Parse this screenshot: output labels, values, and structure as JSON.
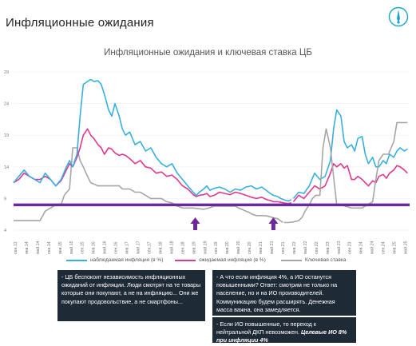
{
  "page": {
    "title": "Инфляционные ожидания",
    "logo_icon": "compass-logo-icon"
  },
  "notes": [
    {
      "text": "- ЦБ беспокоит независимость инфляционных ожиданий от инфляции. Люди смотрят на те товары которые они покупают, а не на инфляцию... Они же покупают продовольствие, а не смартфоны..."
    },
    {
      "text": "- А что если инфляция 4%, а ИО останутся повышенными? Ответ: смотрим не только на население, но и на ИО производителей. Коммуникацию будем расширять. Денежная масса важна, она замедляется."
    },
    {
      "text": "- Если ИО повышенные, то переход к нейтральной ДКП невозможен.",
      "highlight": "Целевые ИО 8% при инфляции 4%"
    }
  ],
  "colors": {
    "observed": "#38b0dd",
    "expected": "#e0388f",
    "key_rate": "#a6a6a6",
    "target_line": "#6a2a9c",
    "arrow": "#6a2a9c",
    "note_bg": "#1f2a37"
  },
  "chart_data": {
    "type": "line",
    "title": "Инфляционные ожидания и ключевая ставка ЦБ",
    "ylim": [
      4,
      29
    ],
    "y_ticks": [
      "4",
      "9",
      "14",
      "19",
      "24",
      "29"
    ],
    "x_tick_labels": [
      "сен.13",
      "янв.14",
      "май.14",
      "сен.14",
      "янв.15",
      "май.15",
      "сен.15",
      "янв.16",
      "май.16",
      "сен.16",
      "янв.17",
      "май.17",
      "сен.17",
      "янв.18",
      "май.18",
      "сен.18",
      "янв.19",
      "май.19",
      "сен.19",
      "янв.20",
      "май.20",
      "сен.20",
      "янв.21",
      "май.21",
      "сен.21",
      "янв.22",
      "май.22",
      "сен.22",
      "янв.23",
      "май.23",
      "сен.23",
      "янв.24",
      "май.24",
      "сен.24",
      "янв.25",
      "май.25"
    ],
    "x_range": [
      0,
      35
    ],
    "horizontal_line": {
      "y": 8
    },
    "arrows": [
      {
        "x": 17.2
      },
      {
        "x": 24.6
      }
    ],
    "series": [
      {
        "name": "наблюдаемая инфляция (в %)",
        "points": [
          [
            0,
            11.5
          ],
          [
            0.5,
            12.5
          ],
          [
            1,
            13.5
          ],
          [
            1.5,
            12.5
          ],
          [
            2,
            12
          ],
          [
            2.5,
            11.5
          ],
          [
            3,
            13
          ],
          [
            3.5,
            12
          ],
          [
            4,
            11
          ],
          [
            4.5,
            12
          ],
          [
            5,
            14
          ],
          [
            5.3,
            15
          ],
          [
            5.6,
            14
          ],
          [
            6,
            16
          ],
          [
            6.3,
            22
          ],
          [
            6.6,
            27
          ],
          [
            7,
            27.5
          ],
          [
            7.3,
            27.8
          ],
          [
            7.6,
            27.5
          ],
          [
            8,
            27.6
          ],
          [
            8.3,
            27
          ],
          [
            8.6,
            25.5
          ],
          [
            9,
            23
          ],
          [
            9.3,
            22
          ],
          [
            9.6,
            24
          ],
          [
            10,
            22
          ],
          [
            10.3,
            20
          ],
          [
            10.6,
            19
          ],
          [
            11,
            19.5
          ],
          [
            11.5,
            17.5
          ],
          [
            12,
            18
          ],
          [
            12.5,
            16.5
          ],
          [
            13,
            17
          ],
          [
            13.5,
            15.5
          ],
          [
            14,
            14.5
          ],
          [
            14.5,
            14
          ],
          [
            15,
            14.5
          ],
          [
            15.5,
            13
          ],
          [
            16,
            12
          ],
          [
            16.5,
            11
          ],
          [
            17,
            10
          ],
          [
            17.3,
            9.5
          ],
          [
            17.6,
            10
          ],
          [
            18,
            10.5
          ],
          [
            18.3,
            11
          ],
          [
            18.6,
            10.3
          ],
          [
            19,
            10.6
          ],
          [
            19.5,
            10.8
          ],
          [
            20,
            10.5
          ],
          [
            20.5,
            10
          ],
          [
            21,
            10.5
          ],
          [
            21.5,
            10.3
          ],
          [
            22,
            10.8
          ],
          [
            22.5,
            11
          ],
          [
            23,
            10.5
          ],
          [
            23.5,
            10.8
          ],
          [
            24,
            10.2
          ],
          [
            24.3,
            9.8
          ],
          [
            24.6,
            9.5
          ],
          [
            25,
            9.3
          ],
          [
            25.3,
            9
          ],
          [
            25.6,
            8.8
          ],
          [
            26,
            8.6
          ],
          [
            26.3,
            8.8
          ]
        ]
      },
      {
        "name": "ожидаемая инфляция (в %)",
        "points": [
          [
            0,
            11.5
          ],
          [
            0.5,
            12
          ],
          [
            1,
            13
          ],
          [
            1.5,
            12.5
          ],
          [
            2,
            12
          ],
          [
            2.5,
            12
          ],
          [
            3,
            12.5
          ],
          [
            3.5,
            12
          ],
          [
            4,
            11
          ],
          [
            4.5,
            11.8
          ],
          [
            5,
            13.5
          ],
          [
            5.3,
            14.5
          ],
          [
            5.6,
            14
          ],
          [
            6,
            15.5
          ],
          [
            6.3,
            17
          ],
          [
            6.6,
            19
          ],
          [
            7,
            20
          ],
          [
            7.3,
            19
          ],
          [
            7.6,
            18.5
          ],
          [
            8,
            17.5
          ],
          [
            8.3,
            17
          ],
          [
            8.6,
            16
          ],
          [
            9,
            17
          ],
          [
            9.3,
            16.8
          ],
          [
            9.6,
            16.2
          ],
          [
            10,
            15.8
          ],
          [
            10.3,
            16
          ],
          [
            10.6,
            15.8
          ],
          [
            11,
            15.3
          ],
          [
            11.5,
            14.5
          ],
          [
            12,
            15
          ],
          [
            12.5,
            14
          ],
          [
            13,
            13.8
          ],
          [
            13.5,
            13
          ],
          [
            14,
            13.2
          ],
          [
            14.5,
            12.5
          ],
          [
            15,
            12.7
          ],
          [
            15.5,
            12
          ],
          [
            16,
            11
          ],
          [
            16.5,
            10.5
          ],
          [
            17,
            9.6
          ],
          [
            17.3,
            9.3
          ],
          [
            17.6,
            9.5
          ],
          [
            18,
            9.6
          ],
          [
            18.3,
            9.8
          ],
          [
            18.6,
            9.3
          ],
          [
            19,
            9.5
          ],
          [
            19.5,
            10
          ],
          [
            20,
            9.8
          ],
          [
            20.5,
            9.6
          ],
          [
            21,
            10
          ],
          [
            21.5,
            9.8
          ],
          [
            22,
            9.5
          ],
          [
            22.5,
            9.2
          ],
          [
            23,
            9
          ],
          [
            23.5,
            9.2
          ],
          [
            24,
            8.8
          ],
          [
            24.3,
            8.7
          ],
          [
            24.6,
            8.5
          ],
          [
            25,
            8.5
          ],
          [
            25.3,
            8.4
          ],
          [
            25.6,
            8.3
          ],
          [
            26,
            8.2
          ],
          [
            26.3,
            8.3
          ]
        ]
      },
      {
        "name": "Ключевая ставка",
        "points": [
          [
            0,
            5.5
          ],
          [
            1,
            5.5
          ],
          [
            2,
            5.5
          ],
          [
            2.5,
            5.5
          ],
          [
            3,
            7
          ],
          [
            3.5,
            7.5
          ],
          [
            4,
            8
          ],
          [
            4.5,
            8
          ],
          [
            4.8,
            9.5
          ],
          [
            5.3,
            10.5
          ],
          [
            5.6,
            17
          ],
          [
            6,
            17
          ],
          [
            6.3,
            15
          ],
          [
            6.6,
            14
          ],
          [
            7,
            12.5
          ],
          [
            7.3,
            11.5
          ],
          [
            8,
            11
          ],
          [
            9,
            11
          ],
          [
            10,
            11
          ],
          [
            10.3,
            10.5
          ],
          [
            11,
            10.5
          ],
          [
            11.5,
            10
          ],
          [
            12,
            10
          ],
          [
            12.5,
            9.5
          ],
          [
            13,
            9
          ],
          [
            14,
            9
          ],
          [
            14.5,
            8.5
          ],
          [
            15,
            8.3
          ],
          [
            15.5,
            7.8
          ],
          [
            16,
            7.5
          ],
          [
            17,
            7.5
          ],
          [
            18,
            7.3
          ],
          [
            18.5,
            7.5
          ],
          [
            19,
            7.8
          ],
          [
            20,
            7.8
          ],
          [
            21,
            7.8
          ],
          [
            21.3,
            7.5
          ],
          [
            21.6,
            7.3
          ],
          [
            22,
            7
          ],
          [
            22.3,
            6.8
          ],
          [
            22.6,
            6.5
          ],
          [
            23,
            6.3
          ],
          [
            23.5,
            6.3
          ],
          [
            24,
            6.25
          ],
          [
            24.5,
            6
          ],
          [
            25,
            5.8
          ],
          [
            25.5,
            5.2
          ]
        ]
      }
    ],
    "series_right": [
      {
        "name": "наблюдаемая инфляция (в %)",
        "points": [
          [
            26.5,
            9
          ],
          [
            27,
            10
          ],
          [
            27.5,
            9.8
          ],
          [
            28,
            11
          ],
          [
            28.5,
            13
          ],
          [
            29,
            12
          ],
          [
            29.5,
            12.5
          ],
          [
            30,
            15
          ],
          [
            30.3,
            20
          ],
          [
            30.6,
            23
          ],
          [
            31,
            22
          ],
          [
            31.3,
            18
          ],
          [
            31.6,
            17
          ],
          [
            32,
            17.5
          ],
          [
            32.3,
            16.5
          ],
          [
            32.6,
            18.5
          ],
          [
            33,
            18.8
          ],
          [
            33.3,
            16
          ],
          [
            33.6,
            14.5
          ],
          [
            34,
            15.5
          ],
          [
            34.3,
            14
          ],
          [
            34.6,
            14
          ],
          [
            35,
            15
          ],
          [
            35.3,
            14.5
          ],
          [
            35.6,
            16
          ],
          [
            36,
            15.5
          ],
          [
            36.3,
            16.5
          ],
          [
            36.6,
            17
          ],
          [
            37,
            16.5
          ],
          [
            37.3,
            16.8
          ]
        ]
      }
    ]
  }
}
